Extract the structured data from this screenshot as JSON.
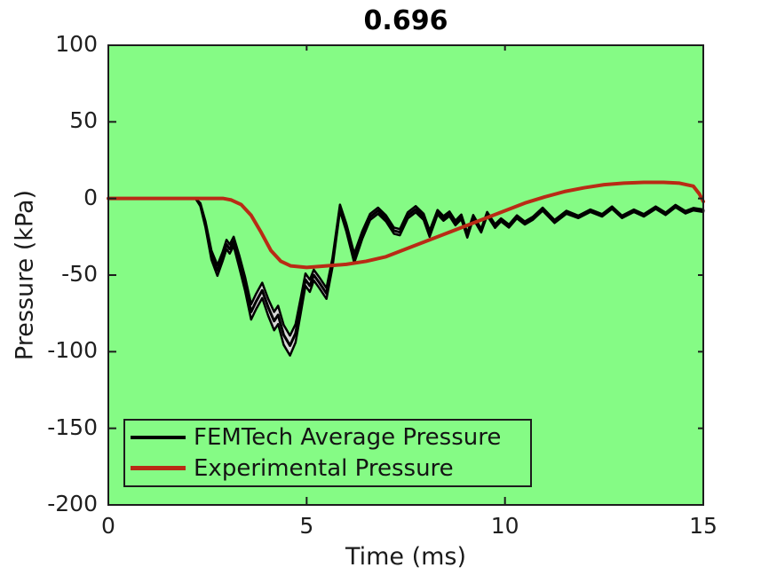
{
  "figure": {
    "background": "#ffffff"
  },
  "chart_data": {
    "type": "line",
    "title": "0.696",
    "xlabel": "Time (ms)",
    "ylabel": "Pressure (kPa)",
    "xlim": [
      0,
      15
    ],
    "ylim": [
      -200,
      100
    ],
    "xticks": [
      0,
      5,
      10,
      15
    ],
    "yticks": [
      100,
      50,
      0,
      -50,
      -100,
      -150,
      -200
    ],
    "grid": false,
    "plot_bg": "#85fb85",
    "axis_color": "#1c1c1c",
    "tick_label_color": "#1f1f1f",
    "legend_position": "lower-left",
    "series": [
      {
        "name": "FEMTech Average Pressure",
        "color": "#000000",
        "band_fill": "#d8d8d8",
        "points": [
          [
            0,
            0
          ],
          [
            2.2,
            0
          ],
          [
            2.32,
            -4
          ],
          [
            2.45,
            -17
          ],
          [
            2.6,
            -37
          ],
          [
            2.75,
            -47
          ],
          [
            2.88,
            -38
          ],
          [
            2.98,
            -30
          ],
          [
            3.06,
            -33
          ],
          [
            3.16,
            -28
          ],
          [
            3.3,
            -41
          ],
          [
            3.45,
            -56
          ],
          [
            3.6,
            -74
          ],
          [
            3.73,
            -67
          ],
          [
            3.88,
            -60
          ],
          [
            4.03,
            -71
          ],
          [
            4.18,
            -80
          ],
          [
            4.28,
            -76
          ],
          [
            4.42,
            -89
          ],
          [
            4.58,
            -96
          ],
          [
            4.72,
            -88
          ],
          [
            4.85,
            -70
          ],
          [
            4.97,
            -53
          ],
          [
            5.08,
            -57
          ],
          [
            5.18,
            -50
          ],
          [
            5.32,
            -55
          ],
          [
            5.5,
            -62
          ],
          [
            5.65,
            -42
          ],
          [
            5.84,
            -6
          ],
          [
            6.0,
            -19
          ],
          [
            6.2,
            -39
          ],
          [
            6.4,
            -24
          ],
          [
            6.6,
            -12
          ],
          [
            6.8,
            -8
          ],
          [
            7.0,
            -13
          ],
          [
            7.2,
            -21
          ],
          [
            7.35,
            -22
          ],
          [
            7.55,
            -11
          ],
          [
            7.75,
            -7
          ],
          [
            7.95,
            -12
          ],
          [
            8.1,
            -23
          ],
          [
            8.3,
            -9
          ],
          [
            8.45,
            -13
          ],
          [
            8.6,
            -10
          ],
          [
            8.75,
            -16
          ],
          [
            8.9,
            -12
          ],
          [
            9.05,
            -24
          ],
          [
            9.2,
            -12
          ],
          [
            9.4,
            -21
          ],
          [
            9.55,
            -10
          ],
          [
            9.75,
            -18
          ],
          [
            9.9,
            -14
          ],
          [
            10.1,
            -18
          ],
          [
            10.3,
            -12
          ],
          [
            10.5,
            -16
          ],
          [
            10.7,
            -13
          ],
          [
            10.95,
            -7
          ],
          [
            11.25,
            -15
          ],
          [
            11.55,
            -9
          ],
          [
            11.85,
            -12
          ],
          [
            12.15,
            -8
          ],
          [
            12.45,
            -11
          ],
          [
            12.7,
            -6
          ],
          [
            12.95,
            -12
          ],
          [
            13.25,
            -8
          ],
          [
            13.5,
            -11
          ],
          [
            13.8,
            -6
          ],
          [
            14.05,
            -10
          ],
          [
            14.3,
            -5
          ],
          [
            14.55,
            -9
          ],
          [
            14.75,
            -7
          ],
          [
            15,
            -8
          ]
        ],
        "sigma": [
          0,
          0,
          1,
          2,
          3,
          3.5,
          3,
          3,
          3,
          3,
          4,
          4.5,
          5,
          5,
          5,
          5.5,
          6,
          6,
          6.5,
          6.5,
          6,
          5,
          4,
          4,
          3.5,
          3.5,
          3.5,
          3,
          2,
          2.5,
          3,
          2.5,
          2,
          2,
          2,
          2,
          2,
          2,
          2,
          2,
          2,
          1.5,
          1.5,
          1.5,
          1.5,
          1.5,
          1.5,
          1.2,
          1.2,
          1.2,
          1.2,
          1,
          1,
          1,
          1,
          1,
          1,
          1,
          1,
          0.8,
          0.8,
          0.8,
          0.8,
          0.8,
          0.8,
          0.8,
          0.8,
          0.8,
          0.8,
          0.8,
          0.8,
          0.8
        ]
      },
      {
        "name": "Experimental Pressure",
        "color": "#b92b15",
        "points": [
          [
            0,
            0
          ],
          [
            2.9,
            0
          ],
          [
            3.1,
            -1
          ],
          [
            3.35,
            -4
          ],
          [
            3.6,
            -11
          ],
          [
            3.85,
            -22
          ],
          [
            4.1,
            -34
          ],
          [
            4.35,
            -41
          ],
          [
            4.6,
            -44
          ],
          [
            5.0,
            -45
          ],
          [
            5.5,
            -44
          ],
          [
            6.0,
            -43
          ],
          [
            6.5,
            -41
          ],
          [
            7.0,
            -38
          ],
          [
            7.5,
            -33
          ],
          [
            8.0,
            -28
          ],
          [
            8.5,
            -23
          ],
          [
            9.0,
            -18
          ],
          [
            9.5,
            -13
          ],
          [
            10.0,
            -8
          ],
          [
            10.5,
            -3
          ],
          [
            11.0,
            1
          ],
          [
            11.5,
            4.5
          ],
          [
            12.0,
            7
          ],
          [
            12.5,
            9
          ],
          [
            13.0,
            10
          ],
          [
            13.5,
            10.5
          ],
          [
            14.0,
            10.5
          ],
          [
            14.4,
            10
          ],
          [
            14.75,
            8
          ],
          [
            14.9,
            3
          ],
          [
            15,
            -2
          ]
        ]
      }
    ]
  }
}
